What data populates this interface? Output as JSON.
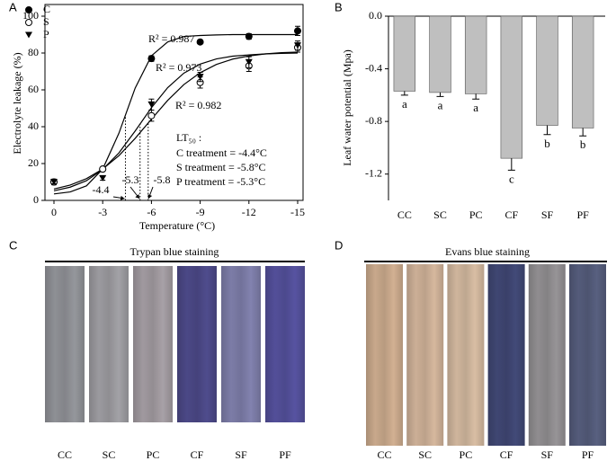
{
  "panel_labels": [
    "A",
    "B",
    "C",
    "D"
  ],
  "chart_data": [
    {
      "type": "scatter",
      "x_label": "Temperature (°C)",
      "y_label": "Electrolyte leakage (%)",
      "x": [
        0,
        -3,
        -6,
        -9,
        -12,
        -15
      ],
      "fit_x": [
        0,
        -1,
        -2,
        -3,
        -4,
        -5,
        -6,
        -7,
        -8,
        -9,
        -10,
        -11,
        -12,
        -13,
        -14,
        -15
      ],
      "series": [
        {
          "name": "C",
          "color": "#000000",
          "marker": "filled-circle",
          "values": [
            10,
            17,
            77,
            86,
            89,
            92
          ],
          "errors": [
            1.5,
            1,
            1.5,
            1,
            1.5,
            2.5
          ],
          "fit_values": [
            3.5,
            4.6,
            7.9,
            17,
            36.5,
            61,
            78.5,
            86,
            89,
            89.5,
            89.8,
            90,
            90,
            90,
            90,
            90
          ],
          "fit_label": "R² = 0.987"
        },
        {
          "name": "S",
          "color": "#000000",
          "marker": "open-circle",
          "values": [
            10,
            17,
            46,
            64,
            73,
            83
          ],
          "errors": [
            1,
            1,
            3,
            3,
            3,
            2.5
          ],
          "fit_values": [
            6.2,
            8.3,
            11.8,
            17,
            24.3,
            33.7,
            44.1,
            54.3,
            62.9,
            69.3,
            73.8,
            76.7,
            78.4,
            79.5,
            80.2,
            80.5
          ],
          "fit_label": "R² = 0.973"
        },
        {
          "name": "P",
          "color": "#000000",
          "marker": "triangle-down",
          "values": [
            10,
            12,
            52,
            67,
            75,
            84
          ],
          "errors": [
            1,
            1,
            3,
            2.5,
            3,
            2.5
          ],
          "fit_values": [
            5.2,
            7.2,
            10.7,
            16.8,
            25.8,
            37.7,
            50.3,
            61.2,
            69.1,
            74,
            76.8,
            78.3,
            79,
            79.5,
            79.8,
            80
          ],
          "fit_label": "R² = 0.982"
        }
      ],
      "xlim": [
        0,
        -15
      ],
      "xticks": [
        0,
        -3,
        -6,
        -9,
        -12,
        -15
      ],
      "ylim": [
        0,
        100
      ],
      "yticks": [
        0,
        20,
        40,
        60,
        80,
        100
      ],
      "legend": "upper left",
      "lt50_title": "LT₅₀ :",
      "lt50_lines": [
        "C treatment = -4.4°C",
        "S treatment = -5.8°C",
        "P treatment = -5.3°C"
      ],
      "lt50_markers": [
        -4.4,
        -5.3,
        -5.8
      ]
    },
    {
      "type": "bar",
      "y_label": "Leaf water potential (Mpa)",
      "categories": [
        "CC",
        "SC",
        "PC",
        "CF",
        "SF",
        "PF"
      ],
      "values": [
        -0.57,
        -0.58,
        -0.59,
        -1.08,
        -0.83,
        -0.85
      ],
      "errors": [
        0.03,
        0.03,
        0.04,
        0.09,
        0.07,
        0.06
      ],
      "letters": [
        "a",
        "a",
        "a",
        "c",
        "b",
        "b"
      ],
      "color": "#bfbfbf",
      "ylim": [
        -1.4,
        0
      ],
      "yticks": [
        {
          "value": 0,
          "label": "0.0"
        },
        -0.4,
        -0.8,
        -1.2
      ]
    }
  ],
  "images": [
    {
      "title": "Trypan blue staining",
      "labels": [
        "CC",
        "SC",
        "PC",
        "CF",
        "SF",
        "PF"
      ]
    },
    {
      "title": "Evans blue staining",
      "labels": [
        "CC",
        "SC",
        "PC",
        "CF",
        "SF",
        "PF"
      ]
    }
  ]
}
